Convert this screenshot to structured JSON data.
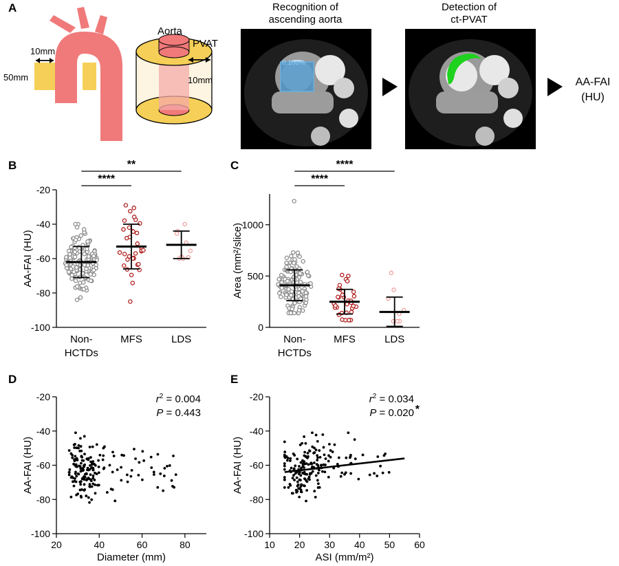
{
  "panel_a": {
    "letter": "A",
    "dim_10mm": "10mm",
    "dim_50mm": "50mm",
    "aorta_label": "Aorta",
    "pvat_label": "PVAT",
    "cyl_10mm": "10mm",
    "ct1_title_1": "Recognition of",
    "ct1_title_2": "ascending aorta",
    "ct1_overlay": "0.100%",
    "ct2_title_1": "Detection of",
    "ct2_title_2": "ct-PVAT",
    "result_1": "AA-FAI",
    "result_2": "(HU)",
    "colors": {
      "aorta": "#f07a7a",
      "pvat": "#f5cf57",
      "ct_mask": "#4d93c4",
      "ct_fat": "#1ed21e"
    }
  },
  "chart_data": [
    {
      "id": "B",
      "letter": "B",
      "type": "scatter",
      "subtype": "dot-plot",
      "ylabel": "AA-FAI  (HU)",
      "ylim": [
        -100,
        -20
      ],
      "yticks": [
        -20,
        -40,
        -60,
        -80,
        -100
      ],
      "ytick_labels": [
        "-20",
        "-40",
        "-60",
        "-80",
        "-100"
      ],
      "categories": [
        "Non-\nHCTDs",
        "MFS",
        "LDS"
      ],
      "cat_line1": [
        "Non-",
        "MFS",
        "LDS"
      ],
      "cat_line2": [
        "HCTDs",
        "",
        ""
      ],
      "groups": [
        {
          "name": "Non-HCTDs",
          "color": "#8c8c8c",
          "n": 150,
          "mean": -62,
          "sd": 8.5,
          "min": -84,
          "max": -40,
          "err_low": -71,
          "err_high": -53
        },
        {
          "name": "MFS",
          "color": "#b01e1e",
          "n": 35,
          "mean": -53,
          "sd": 12.5,
          "min": -85,
          "max": -29,
          "err_low": -66,
          "err_high": -40
        },
        {
          "name": "LDS",
          "color": "#f0a0a0",
          "n": 9,
          "mean": -52,
          "sd": 8,
          "min": -60,
          "max": -40,
          "err_low": -60,
          "err_high": -44
        }
      ],
      "significance": [
        {
          "from": 0,
          "to": 1,
          "label": "****"
        },
        {
          "from": 0,
          "to": 2,
          "label": "**"
        }
      ]
    },
    {
      "id": "C",
      "letter": "C",
      "type": "scatter",
      "subtype": "dot-plot",
      "ylabel": "Area (mm²/slice)",
      "ylim": [
        0,
        1300
      ],
      "yticks": [
        0,
        500,
        1000
      ],
      "ytick_labels": [
        "0",
        "500",
        "1000"
      ],
      "categories": [
        "Non-\nHCTDs",
        "MFS",
        "LDS"
      ],
      "cat_line1": [
        "Non-",
        "MFS",
        "LDS"
      ],
      "cat_line2": [
        "HCTDs",
        "",
        ""
      ],
      "groups": [
        {
          "name": "Non-HCTDs",
          "color": "#8c8c8c",
          "n": 150,
          "mean": 410,
          "sd": 155,
          "min": 140,
          "max": 1230,
          "err_low": 260,
          "err_high": 560
        },
        {
          "name": "MFS",
          "color": "#b01e1e",
          "n": 35,
          "mean": 250,
          "sd": 115,
          "min": 70,
          "max": 510,
          "err_low": 130,
          "err_high": 370
        },
        {
          "name": "LDS",
          "color": "#f0a0a0",
          "n": 9,
          "mean": 150,
          "sd": 150,
          "min": 60,
          "max": 530,
          "err_low": 10,
          "err_high": 295
        }
      ],
      "significance": [
        {
          "from": 0,
          "to": 1,
          "label": "****"
        },
        {
          "from": 0,
          "to": 2,
          "label": "****"
        }
      ]
    },
    {
      "id": "D",
      "letter": "D",
      "type": "scatter",
      "xlabel": "Diameter (mm)",
      "ylabel": "AA-FAI  (HU)",
      "xlim": [
        20,
        90
      ],
      "xticks": [
        20,
        40,
        60,
        80
      ],
      "xtick_labels": [
        "20",
        "40",
        "60",
        "80"
      ],
      "ylim": [
        -100,
        -20
      ],
      "yticks": [
        -20,
        -40,
        -60,
        -80,
        -100
      ],
      "ytick_labels": [
        "-20",
        "-40",
        "-60",
        "-80",
        "-100"
      ],
      "n": 190,
      "x_range": [
        26,
        80
      ],
      "x_center": 33,
      "y_mean": -62,
      "y_sd": 8,
      "stat_r2_label": "r",
      "stat_r2": "= 0.004",
      "stat_p_label": "P",
      "stat_p": "= 0.443",
      "fit_line": false
    },
    {
      "id": "E",
      "letter": "E",
      "type": "scatter",
      "xlabel": "ASI (mm/m²)",
      "ylabel": "AA-FAI  (HU)",
      "xlim": [
        10,
        60
      ],
      "xticks": [
        10,
        20,
        30,
        40,
        50,
        60
      ],
      "xtick_labels": [
        "10",
        "20",
        "30",
        "40",
        "50",
        "60"
      ],
      "ylim": [
        -100,
        -20
      ],
      "yticks": [
        -20,
        -40,
        -60,
        -80,
        -100
      ],
      "ytick_labels": [
        "-20",
        "-40",
        "-60",
        "-80",
        "-100"
      ],
      "n": 190,
      "x_range": [
        15,
        50
      ],
      "x_center": 22,
      "y_mean": -62,
      "y_sd": 8,
      "stat_r2_label": "r",
      "stat_r2": "= 0.034",
      "stat_p_label": "P",
      "stat_p": "= 0.020",
      "stat_star": "*",
      "fit_line": true,
      "fit": {
        "x0": 15,
        "y0": -64,
        "x1": 55,
        "y1": -56
      }
    }
  ]
}
